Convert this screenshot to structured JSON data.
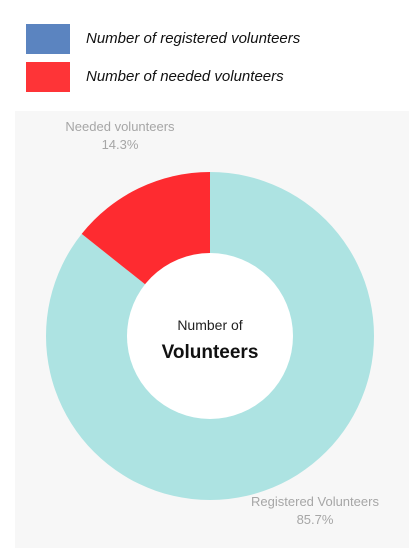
{
  "legend": {
    "items": [
      {
        "label": "Number of registered volunteers",
        "color": "#5b84c0"
      },
      {
        "label": "Number of needed volunteers",
        "color": "#fe3437"
      }
    ]
  },
  "chart_data": {
    "type": "pie",
    "donut": true,
    "center_text": {
      "line1": "Number of",
      "line2": "Volunteers"
    },
    "slices": [
      {
        "label": "Registered Volunteers",
        "percent_label": "85.7%",
        "value": 85.7,
        "color": "#ade3e2"
      },
      {
        "label": "Needed volunteers",
        "percent_label": "14.3%",
        "value": 14.3,
        "color": "#fe2b30"
      }
    ],
    "legend_placement": "top"
  }
}
